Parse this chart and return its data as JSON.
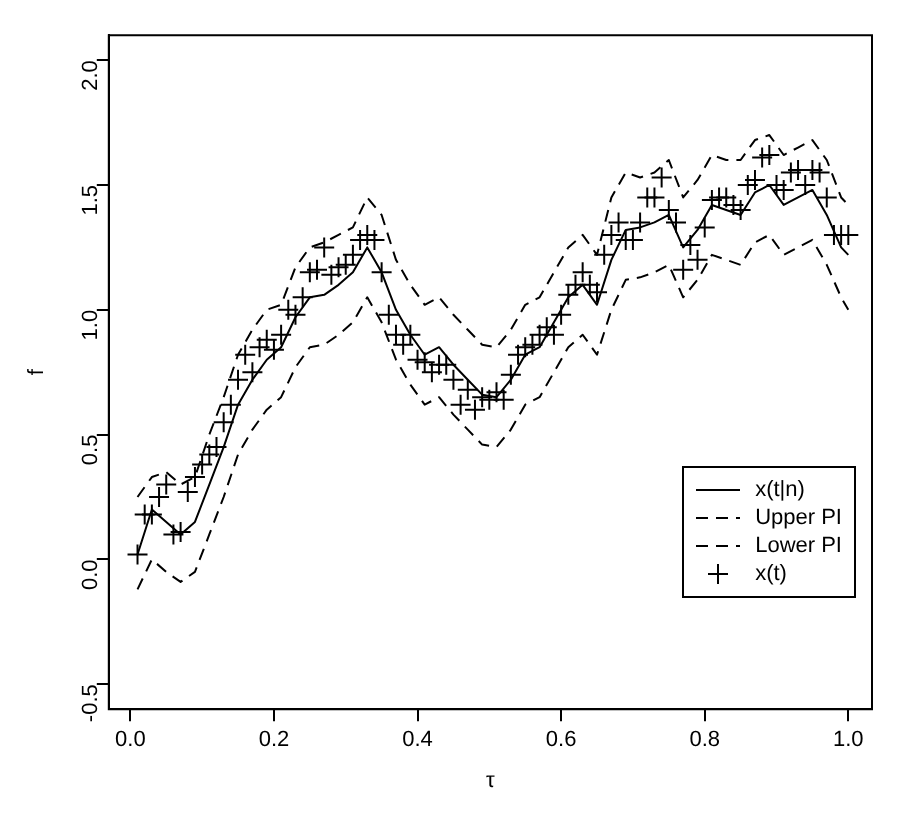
{
  "chart_data": {
    "type": "line",
    "xlabel": "τ",
    "ylabel": "f",
    "xlim": [
      -0.03,
      1.033
    ],
    "xticks": [
      {
        "value": 0,
        "label": "0.0"
      },
      0.2,
      0.4,
      0.6,
      0.8,
      {
        "value": 1,
        "label": "1.0"
      }
    ],
    "ylim": [
      -0.6,
      2.1
    ],
    "yticks": [
      -0.5,
      {
        "value": 0,
        "label": "0.0"
      },
      0.5,
      {
        "value": 1,
        "label": "1.0"
      },
      1.5,
      {
        "value": 2,
        "label": "2.0"
      }
    ],
    "grid": false,
    "legend": "right",
    "series": [
      {
        "name": "x(t|n)",
        "type": "line",
        "line_style": "solid",
        "color": "#000000",
        "x": [
          0.01,
          0.03,
          0.05,
          0.07,
          0.09,
          0.11,
          0.13,
          0.15,
          0.17,
          0.19,
          0.21,
          0.23,
          0.25,
          0.27,
          0.29,
          0.31,
          0.33,
          0.35,
          0.37,
          0.39,
          0.41,
          0.43,
          0.45,
          0.47,
          0.49,
          0.51,
          0.53,
          0.55,
          0.57,
          0.59,
          0.61,
          0.63,
          0.65,
          0.67,
          0.69,
          0.71,
          0.73,
          0.75,
          0.77,
          0.79,
          0.81,
          0.83,
          0.85,
          0.87,
          0.89,
          0.91,
          0.93,
          0.95,
          0.97,
          0.99,
          1.0
        ],
        "values": [
          0.02,
          0.2,
          0.15,
          0.1,
          0.15,
          0.3,
          0.45,
          0.62,
          0.72,
          0.8,
          0.85,
          0.97,
          1.05,
          1.06,
          1.1,
          1.15,
          1.25,
          1.15,
          1.0,
          0.9,
          0.82,
          0.85,
          0.78,
          0.72,
          0.66,
          0.65,
          0.72,
          0.82,
          0.85,
          0.95,
          1.05,
          1.1,
          1.02,
          1.2,
          1.32,
          1.33,
          1.35,
          1.38,
          1.25,
          1.32,
          1.42,
          1.4,
          1.38,
          1.47,
          1.5,
          1.42,
          1.45,
          1.48,
          1.38,
          1.25,
          1.22
        ]
      },
      {
        "name": "Upper PI",
        "type": "line",
        "line_style": "dashed",
        "color": "#000000",
        "x": [
          0.01,
          0.03,
          0.05,
          0.07,
          0.09,
          0.11,
          0.13,
          0.15,
          0.17,
          0.19,
          0.21,
          0.23,
          0.25,
          0.27,
          0.29,
          0.31,
          0.33,
          0.35,
          0.37,
          0.39,
          0.41,
          0.43,
          0.45,
          0.47,
          0.49,
          0.51,
          0.53,
          0.55,
          0.57,
          0.59,
          0.61,
          0.63,
          0.65,
          0.67,
          0.69,
          0.71,
          0.73,
          0.75,
          0.77,
          0.79,
          0.81,
          0.83,
          0.85,
          0.87,
          0.89,
          0.91,
          0.93,
          0.95,
          0.97,
          0.99,
          1.0
        ],
        "values": [
          0.25,
          0.33,
          0.35,
          0.3,
          0.33,
          0.5,
          0.65,
          0.82,
          0.92,
          1.0,
          1.02,
          1.17,
          1.25,
          1.27,
          1.3,
          1.33,
          1.45,
          1.38,
          1.2,
          1.1,
          1.02,
          1.05,
          0.98,
          0.92,
          0.86,
          0.85,
          0.92,
          1.02,
          1.05,
          1.15,
          1.25,
          1.3,
          1.22,
          1.45,
          1.55,
          1.53,
          1.55,
          1.6,
          1.45,
          1.52,
          1.62,
          1.6,
          1.6,
          1.68,
          1.7,
          1.62,
          1.65,
          1.68,
          1.6,
          1.45,
          1.42
        ]
      },
      {
        "name": "Lower PI",
        "type": "line",
        "line_style": "dashed",
        "color": "#000000",
        "x": [
          0.01,
          0.03,
          0.05,
          0.07,
          0.09,
          0.11,
          0.13,
          0.15,
          0.17,
          0.19,
          0.21,
          0.23,
          0.25,
          0.27,
          0.29,
          0.31,
          0.33,
          0.35,
          0.37,
          0.39,
          0.41,
          0.43,
          0.45,
          0.47,
          0.49,
          0.51,
          0.53,
          0.55,
          0.57,
          0.59,
          0.61,
          0.63,
          0.65,
          0.67,
          0.69,
          0.71,
          0.73,
          0.75,
          0.77,
          0.79,
          0.81,
          0.83,
          0.85,
          0.87,
          0.89,
          0.91,
          0.93,
          0.95,
          0.97,
          0.99,
          1.0
        ],
        "values": [
          -0.12,
          0.0,
          -0.05,
          -0.09,
          -0.05,
          0.1,
          0.25,
          0.42,
          0.52,
          0.6,
          0.65,
          0.77,
          0.85,
          0.86,
          0.9,
          0.95,
          1.05,
          0.95,
          0.8,
          0.7,
          0.62,
          0.65,
          0.58,
          0.52,
          0.46,
          0.45,
          0.52,
          0.62,
          0.65,
          0.75,
          0.85,
          0.9,
          0.82,
          1.0,
          1.12,
          1.13,
          1.15,
          1.18,
          1.05,
          1.12,
          1.22,
          1.2,
          1.18,
          1.27,
          1.3,
          1.22,
          1.25,
          1.28,
          1.18,
          1.05,
          1.0
        ]
      },
      {
        "name": "x(t)",
        "type": "scatter",
        "marker": "cross",
        "color": "#000000",
        "x": [
          0.01,
          0.02,
          0.03,
          0.04,
          0.05,
          0.06,
          0.07,
          0.08,
          0.09,
          0.1,
          0.11,
          0.12,
          0.13,
          0.14,
          0.15,
          0.16,
          0.17,
          0.18,
          0.19,
          0.2,
          0.21,
          0.22,
          0.23,
          0.24,
          0.25,
          0.26,
          0.27,
          0.28,
          0.29,
          0.3,
          0.31,
          0.32,
          0.33,
          0.34,
          0.35,
          0.36,
          0.37,
          0.38,
          0.39,
          0.4,
          0.41,
          0.42,
          0.43,
          0.44,
          0.45,
          0.46,
          0.47,
          0.48,
          0.49,
          0.5,
          0.51,
          0.52,
          0.53,
          0.54,
          0.55,
          0.56,
          0.57,
          0.58,
          0.59,
          0.6,
          0.61,
          0.62,
          0.63,
          0.64,
          0.65,
          0.66,
          0.67,
          0.68,
          0.69,
          0.7,
          0.71,
          0.72,
          0.73,
          0.74,
          0.75,
          0.76,
          0.77,
          0.78,
          0.79,
          0.8,
          0.81,
          0.82,
          0.83,
          0.84,
          0.85,
          0.86,
          0.87,
          0.88,
          0.89,
          0.9,
          0.91,
          0.92,
          0.93,
          0.94,
          0.95,
          0.96,
          0.97,
          0.98,
          0.99,
          1.0
        ],
        "values": [
          0.02,
          0.18,
          0.18,
          0.25,
          0.3,
          0.1,
          0.11,
          0.27,
          0.33,
          0.38,
          0.42,
          0.45,
          0.55,
          0.62,
          0.72,
          0.82,
          0.75,
          0.85,
          0.88,
          0.84,
          0.9,
          1.0,
          0.98,
          1.05,
          1.15,
          1.16,
          1.25,
          1.14,
          1.17,
          1.18,
          1.22,
          1.28,
          1.3,
          1.28,
          1.15,
          0.98,
          0.9,
          0.86,
          0.9,
          0.8,
          0.79,
          0.75,
          0.78,
          0.78,
          0.72,
          0.62,
          0.68,
          0.6,
          0.65,
          0.64,
          0.67,
          0.64,
          0.74,
          0.82,
          0.85,
          0.86,
          0.9,
          0.93,
          0.9,
          0.98,
          1.06,
          1.1,
          1.15,
          1.1,
          1.07,
          1.22,
          1.3,
          1.35,
          1.28,
          1.28,
          1.35,
          1.45,
          1.45,
          1.53,
          1.4,
          1.35,
          1.16,
          1.26,
          1.2,
          1.33,
          1.44,
          1.45,
          1.45,
          1.42,
          1.4,
          1.5,
          1.52,
          1.61,
          1.62,
          1.5,
          1.48,
          1.55,
          1.56,
          1.5,
          1.56,
          1.55,
          1.45,
          1.3,
          1.3,
          1.3
        ]
      }
    ]
  }
}
